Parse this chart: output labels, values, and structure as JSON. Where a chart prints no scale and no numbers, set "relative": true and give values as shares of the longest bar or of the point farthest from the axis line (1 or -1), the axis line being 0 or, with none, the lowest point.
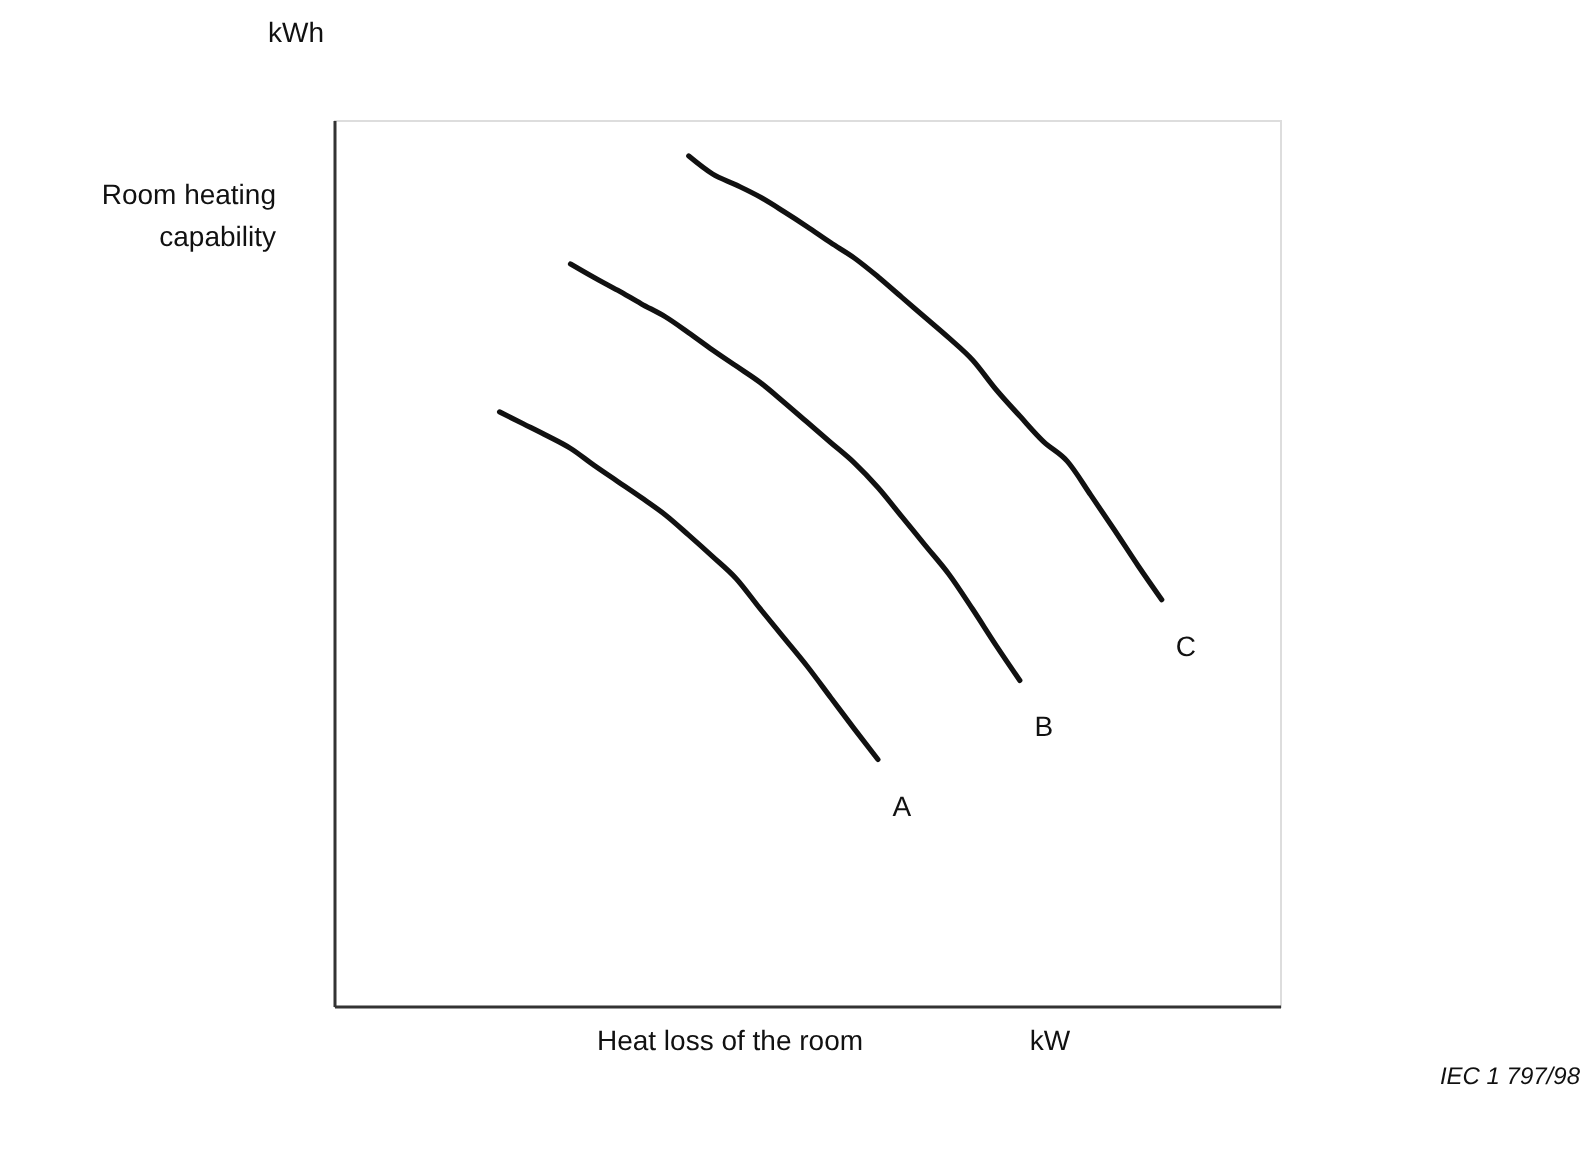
{
  "chart_data": {
    "type": "line",
    "relative": true,
    "tick_labels": false,
    "ylabel": "Room heating capability",
    "xlabel": "Heat loss of the room",
    "annotations": [
      "kWh",
      "kW",
      "IEC 1 797/98"
    ],
    "categories": [
      null,
      null,
      null,
      null,
      null,
      null,
      null,
      null,
      null,
      null,
      null,
      null,
      null,
      null,
      null,
      null,
      null,
      null,
      null,
      null,
      null,
      null,
      null,
      null,
      null,
      null,
      null,
      null,
      null,
      null,
      null,
      null,
      null,
      null,
      null,
      null,
      null,
      null,
      null,
      null,
      null
    ],
    "series": [
      {
        "name": "A",
        "color": "#111111",
        "values": [
          null,
          null,
          null,
          null,
          null,
          null,
          null,
          0.699,
          0.685,
          0.671,
          0.656,
          0.636,
          0.617,
          0.598,
          0.578,
          0.554,
          0.529,
          0.503,
          0.468,
          0.434,
          0.4,
          0.363,
          0.326,
          0.29,
          null,
          null,
          null,
          null,
          null,
          null,
          null,
          null,
          null,
          null,
          null,
          null,
          null,
          null,
          null,
          null,
          null
        ]
      },
      {
        "name": "B",
        "color": "#111111",
        "values": [
          null,
          null,
          null,
          null,
          null,
          null,
          null,
          null,
          null,
          null,
          0.873,
          0.857,
          0.842,
          0.826,
          0.811,
          0.792,
          0.772,
          0.753,
          0.734,
          0.711,
          0.687,
          0.663,
          0.639,
          0.61,
          0.576,
          0.542,
          0.508,
          0.467,
          0.424,
          0.383,
          null,
          null,
          null,
          null,
          null,
          null,
          null,
          null,
          null,
          null,
          null
        ]
      },
      {
        "name": "C",
        "color": "#111111",
        "values": [
          null,
          null,
          null,
          null,
          null,
          null,
          null,
          null,
          null,
          null,
          null,
          null,
          null,
          null,
          null,
          1.0,
          0.979,
          0.966,
          0.952,
          0.935,
          0.917,
          0.898,
          0.88,
          0.858,
          0.834,
          0.81,
          0.786,
          0.76,
          0.725,
          0.694,
          0.664,
          0.641,
          0.601,
          0.56,
          0.518,
          0.478,
          null,
          null,
          null,
          null,
          null
        ]
      }
    ]
  }
}
